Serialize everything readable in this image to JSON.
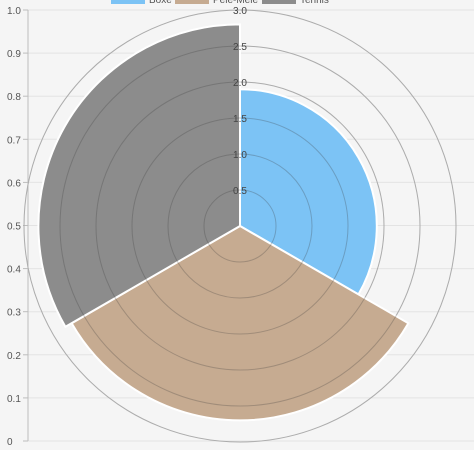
{
  "chart_data": {
    "type": "polarArea",
    "legend": {
      "position": "top",
      "items": [
        "Boxe",
        "Pêle-Mêle",
        "Tennis"
      ]
    },
    "series": [
      {
        "name": "Boxe",
        "value": 1.9,
        "color": "#7cc3f5"
      },
      {
        "name": "Pêle-Mêle",
        "value": 2.7,
        "color": "#c6ab91"
      },
      {
        "name": "Tennis",
        "value": 2.8,
        "color": "#8c8c8c"
      }
    ],
    "radial_scale": {
      "min": 0,
      "max": 2.0,
      "ticks": [
        "0.5",
        "1.0",
        "1.5",
        "2.0",
        "2.5",
        "3.0"
      ]
    },
    "left_axis": {
      "min": 0,
      "max": 1.0,
      "ticks": [
        "0",
        "0.1",
        "0.2",
        "0.3",
        "0.4",
        "0.5",
        "0.6",
        "0.7",
        "0.8",
        "0.9",
        "1.0"
      ]
    }
  }
}
